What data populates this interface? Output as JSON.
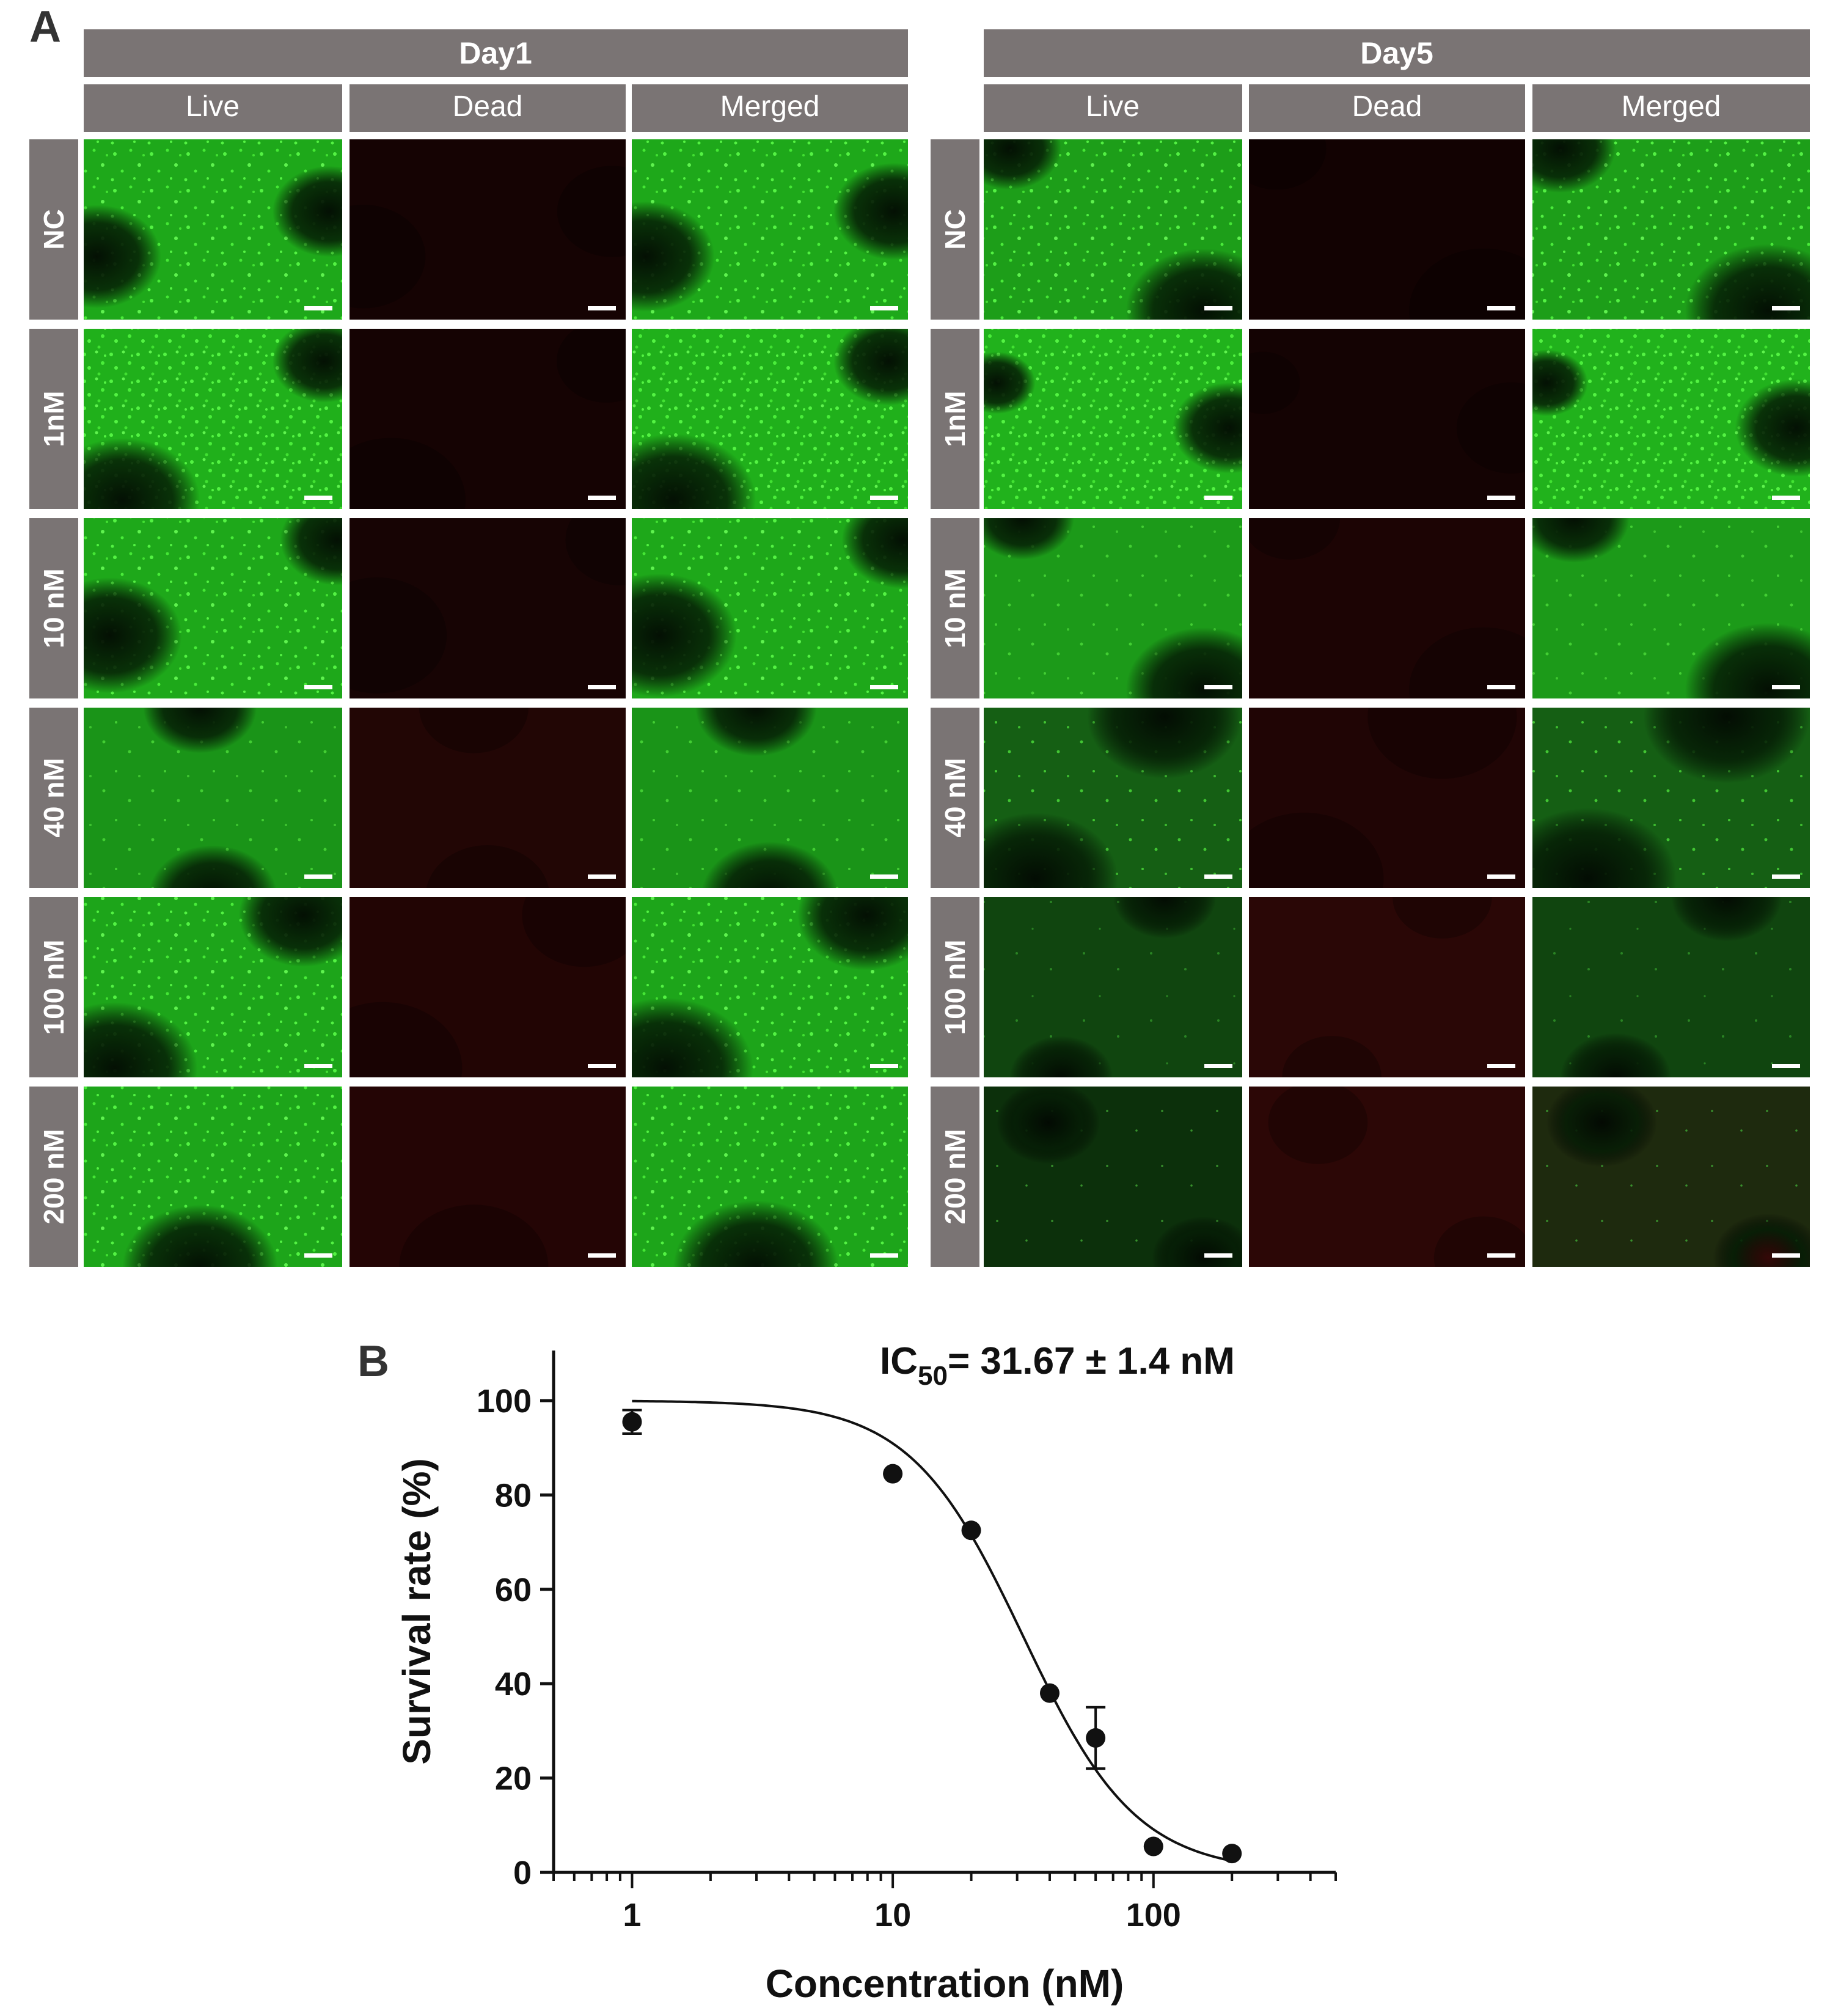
{
  "panel_a": {
    "label": "A",
    "groups": [
      {
        "title": "Day1",
        "channels": [
          "Live",
          "Dead",
          "Merged"
        ]
      },
      {
        "title": "Day5",
        "channels": [
          "Live",
          "Dead",
          "Merged"
        ]
      }
    ],
    "rows": [
      "NC",
      "1nM",
      "10 nM",
      "40 nM",
      "100 nM",
      "200 nM"
    ],
    "colors": {
      "header_bg": "#7a7474",
      "header_text": "#ffffff",
      "live_green": "#1fb51a",
      "dead_red": "#1c0403",
      "scale_bar": "#ffffff"
    }
  },
  "panel_b": {
    "label": "B",
    "annotation": {
      "prefix": "IC",
      "subscript": "50",
      "suffix": "= 31.67 ± 1.4  nM"
    }
  },
  "chart_data": {
    "type": "scatter",
    "xlabel": "Concentration (nM)",
    "ylabel": "Survival rate (%)",
    "x_scale": "log",
    "xlim": [
      0.5,
      500
    ],
    "ylim": [
      0,
      100
    ],
    "xticks": [
      "1",
      "10",
      "100"
    ],
    "yticks": [
      "0",
      "20",
      "40",
      "60",
      "80",
      "100"
    ],
    "grid": false,
    "series": [
      {
        "x": [
          1,
          10,
          20,
          40,
          60,
          100,
          200
        ],
        "y": [
          95.5,
          84.5,
          72.5,
          38.0,
          28.5,
          5.5,
          4.0
        ],
        "error": [
          2.5,
          0,
          0,
          0,
          6.5,
          0,
          0
        ]
      }
    ],
    "fit_curve": {
      "model": "sigmoid dose-response",
      "top": 100,
      "bottom": 0,
      "ic50": 31.67,
      "hill": 2.0
    }
  }
}
